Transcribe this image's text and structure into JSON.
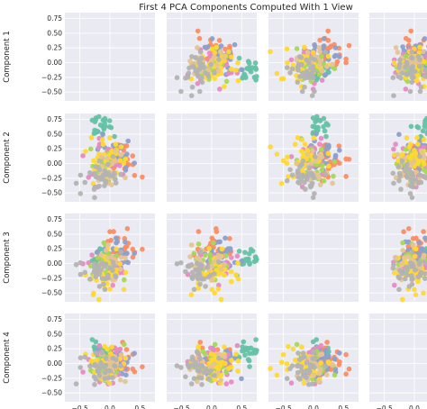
{
  "chart_data": {
    "type": "scatter",
    "title": "First 4 PCA Components Computed With 1 View",
    "components": [
      "Component 1",
      "Component 2",
      "Component 3",
      "Component 4"
    ],
    "xlim": [
      -0.75,
      0.75
    ],
    "ylim": [
      -0.65,
      0.85
    ],
    "xticks": [
      -0.5,
      0.0,
      0.5
    ],
    "xtick_labels": [
      "−0.5",
      "0.0",
      "0.5"
    ],
    "yticks": [
      -0.5,
      -0.25,
      0.0,
      0.25,
      0.5,
      0.75
    ],
    "ytick_labels": [
      "−0.50",
      "−0.25",
      "0.00",
      "0.25",
      "0.50",
      "0.75"
    ],
    "grid": true,
    "diagonal_empty": true,
    "palette": [
      "#66c2a5",
      "#fc8d62",
      "#8da0cb",
      "#e78ac3",
      "#a6d854",
      "#ffd92f",
      "#e5c494",
      "#b3b3b3"
    ],
    "clusters": [
      {
        "color_index": 0,
        "n": 26,
        "spread": 0.1,
        "mean": [
          -0.15,
          0.58,
          0.1,
          0.2
        ]
      },
      {
        "color_index": 1,
        "n": 32,
        "spread": 0.16,
        "mean": [
          0.15,
          0.0,
          0.25,
          0.05
        ]
      },
      {
        "color_index": 2,
        "n": 32,
        "spread": 0.15,
        "mean": [
          0.12,
          0.1,
          0.1,
          0.05
        ]
      },
      {
        "color_index": 3,
        "n": 26,
        "spread": 0.15,
        "mean": [
          -0.05,
          0.05,
          -0.05,
          0.0
        ]
      },
      {
        "color_index": 4,
        "n": 26,
        "spread": 0.15,
        "mean": [
          -0.1,
          -0.05,
          0.0,
          0.0
        ]
      },
      {
        "color_index": 5,
        "n": 36,
        "spread": 0.17,
        "mean": [
          -0.05,
          0.1,
          -0.2,
          0.0
        ]
      },
      {
        "color_index": 6,
        "n": 20,
        "spread": 0.15,
        "mean": [
          0.0,
          -0.05,
          -0.05,
          0.0
        ]
      },
      {
        "color_index": 7,
        "n": 34,
        "spread": 0.14,
        "mean": [
          -0.15,
          -0.2,
          -0.15,
          -0.05
        ]
      }
    ],
    "points": []
  }
}
